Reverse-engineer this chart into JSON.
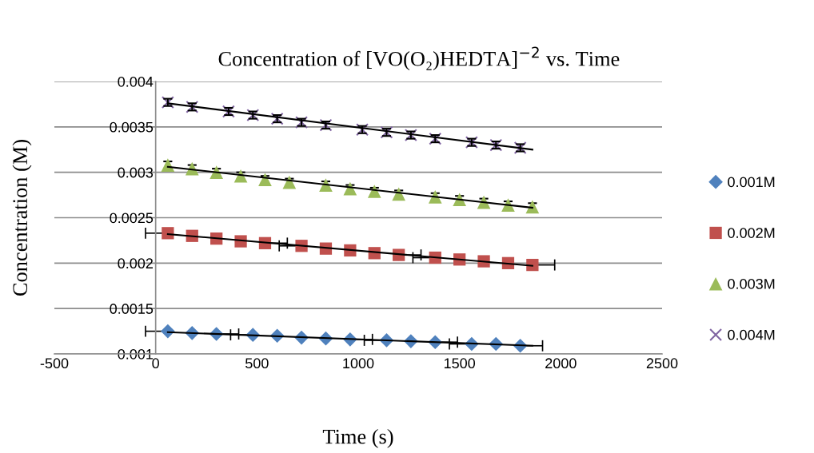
{
  "chart_data": {
    "type": "scatter",
    "title": "Concentration of [VO(O₂)HEDTA]$^{−2}$ vs. Time",
    "xlabel": "Time (s)",
    "ylabel": "Concentration (M)",
    "xlim": [
      -500,
      2500
    ],
    "xticks": [
      -500,
      0,
      500,
      1000,
      1500,
      2000,
      2500
    ],
    "ylim": [
      0.001,
      0.004
    ],
    "yticks": [
      0.001,
      0.0015,
      0.002,
      0.0025,
      0.003,
      0.0035,
      0.004
    ],
    "grid": "y",
    "legend": "right",
    "series": [
      {
        "name": "0.001M",
        "color": "#4f81bd",
        "marker": "diamond",
        "x": [
          60,
          180,
          300,
          480,
          600,
          720,
          840,
          960,
          1140,
          1260,
          1380,
          1560,
          1680,
          1800
        ],
        "values": [
          0.00125,
          0.00123,
          0.00122,
          0.00121,
          0.0012,
          0.00118,
          0.00117,
          0.00116,
          0.00115,
          0.00114,
          0.00113,
          0.00111,
          0.00111,
          0.00109
        ],
        "xerrors": [
          [
            -50,
            60
          ],
          null,
          [
            300,
            410
          ],
          [
            370,
            480
          ],
          null,
          null,
          null,
          [
            960,
            1070
          ],
          [
            1030,
            1140
          ],
          null,
          [
            1380,
            1490
          ],
          [
            1450,
            1560
          ],
          null,
          [
            1800,
            1910
          ]
        ]
      },
      {
        "name": "0.002M",
        "color": "#c0504d",
        "marker": "square",
        "x": [
          60,
          180,
          300,
          420,
          540,
          720,
          840,
          960,
          1080,
          1200,
          1380,
          1500,
          1620,
          1740,
          1860
        ],
        "values": [
          0.00233,
          0.0023,
          0.00227,
          0.00224,
          0.00222,
          0.00219,
          0.00216,
          0.00214,
          0.00211,
          0.00209,
          0.00206,
          0.00204,
          0.00202,
          0.002,
          0.00198
        ],
        "xerrors": [
          [
            -50,
            60
          ],
          null,
          null,
          null,
          [
            540,
            650
          ],
          [
            610,
            720
          ],
          null,
          null,
          null,
          [
            1200,
            1310
          ],
          [
            1270,
            1380
          ],
          null,
          null,
          null,
          [
            1860,
            1970
          ]
        ]
      },
      {
        "name": "0.003M",
        "color": "#9bbb59",
        "marker": "triangle",
        "x": [
          60,
          180,
          300,
          420,
          540,
          660,
          840,
          960,
          1080,
          1200,
          1380,
          1500,
          1620,
          1740,
          1860
        ],
        "values": [
          0.00308,
          0.00304,
          0.003,
          0.00296,
          0.00292,
          0.00289,
          0.00286,
          0.00282,
          0.00279,
          0.00276,
          0.00273,
          0.0027,
          0.00267,
          0.00264,
          0.00262
        ],
        "errors": [
          4e-05,
          4e-05,
          4e-05,
          4e-05,
          4e-05,
          4e-05,
          4e-05,
          4e-05,
          4e-05,
          4e-05,
          4e-05,
          4e-05,
          4e-05,
          4e-05,
          4e-05
        ]
      },
      {
        "name": "0.004M",
        "color": "#8064a2",
        "marker": "cross",
        "x": [
          60,
          180,
          360,
          480,
          600,
          720,
          840,
          1020,
          1140,
          1260,
          1380,
          1560,
          1680,
          1800
        ],
        "values": [
          0.00377,
          0.00372,
          0.00367,
          0.00363,
          0.00359,
          0.00355,
          0.00352,
          0.00347,
          0.00344,
          0.00341,
          0.00337,
          0.00333,
          0.0033,
          0.00327
        ],
        "errors": [
          4e-05,
          4e-05,
          4e-05,
          4e-05,
          4e-05,
          4e-05,
          4e-05,
          4e-05,
          4e-05,
          4e-05,
          4e-05,
          4e-05,
          4e-05,
          4e-05
        ]
      },
      {
        "type": "line",
        "color": "#000000",
        "x": [
          60,
          1860
        ],
        "values": [
          0.00124,
          0.00109
        ]
      },
      {
        "type": "line",
        "color": "#000000",
        "x": [
          60,
          1860
        ],
        "values": [
          0.00232,
          0.00197
        ]
      },
      {
        "type": "line",
        "color": "#000000",
        "x": [
          60,
          1860
        ],
        "values": [
          0.00306,
          0.00261
        ]
      },
      {
        "type": "line",
        "color": "#000000",
        "x": [
          60,
          1860
        ],
        "values": [
          0.00376,
          0.00325
        ]
      }
    ]
  }
}
